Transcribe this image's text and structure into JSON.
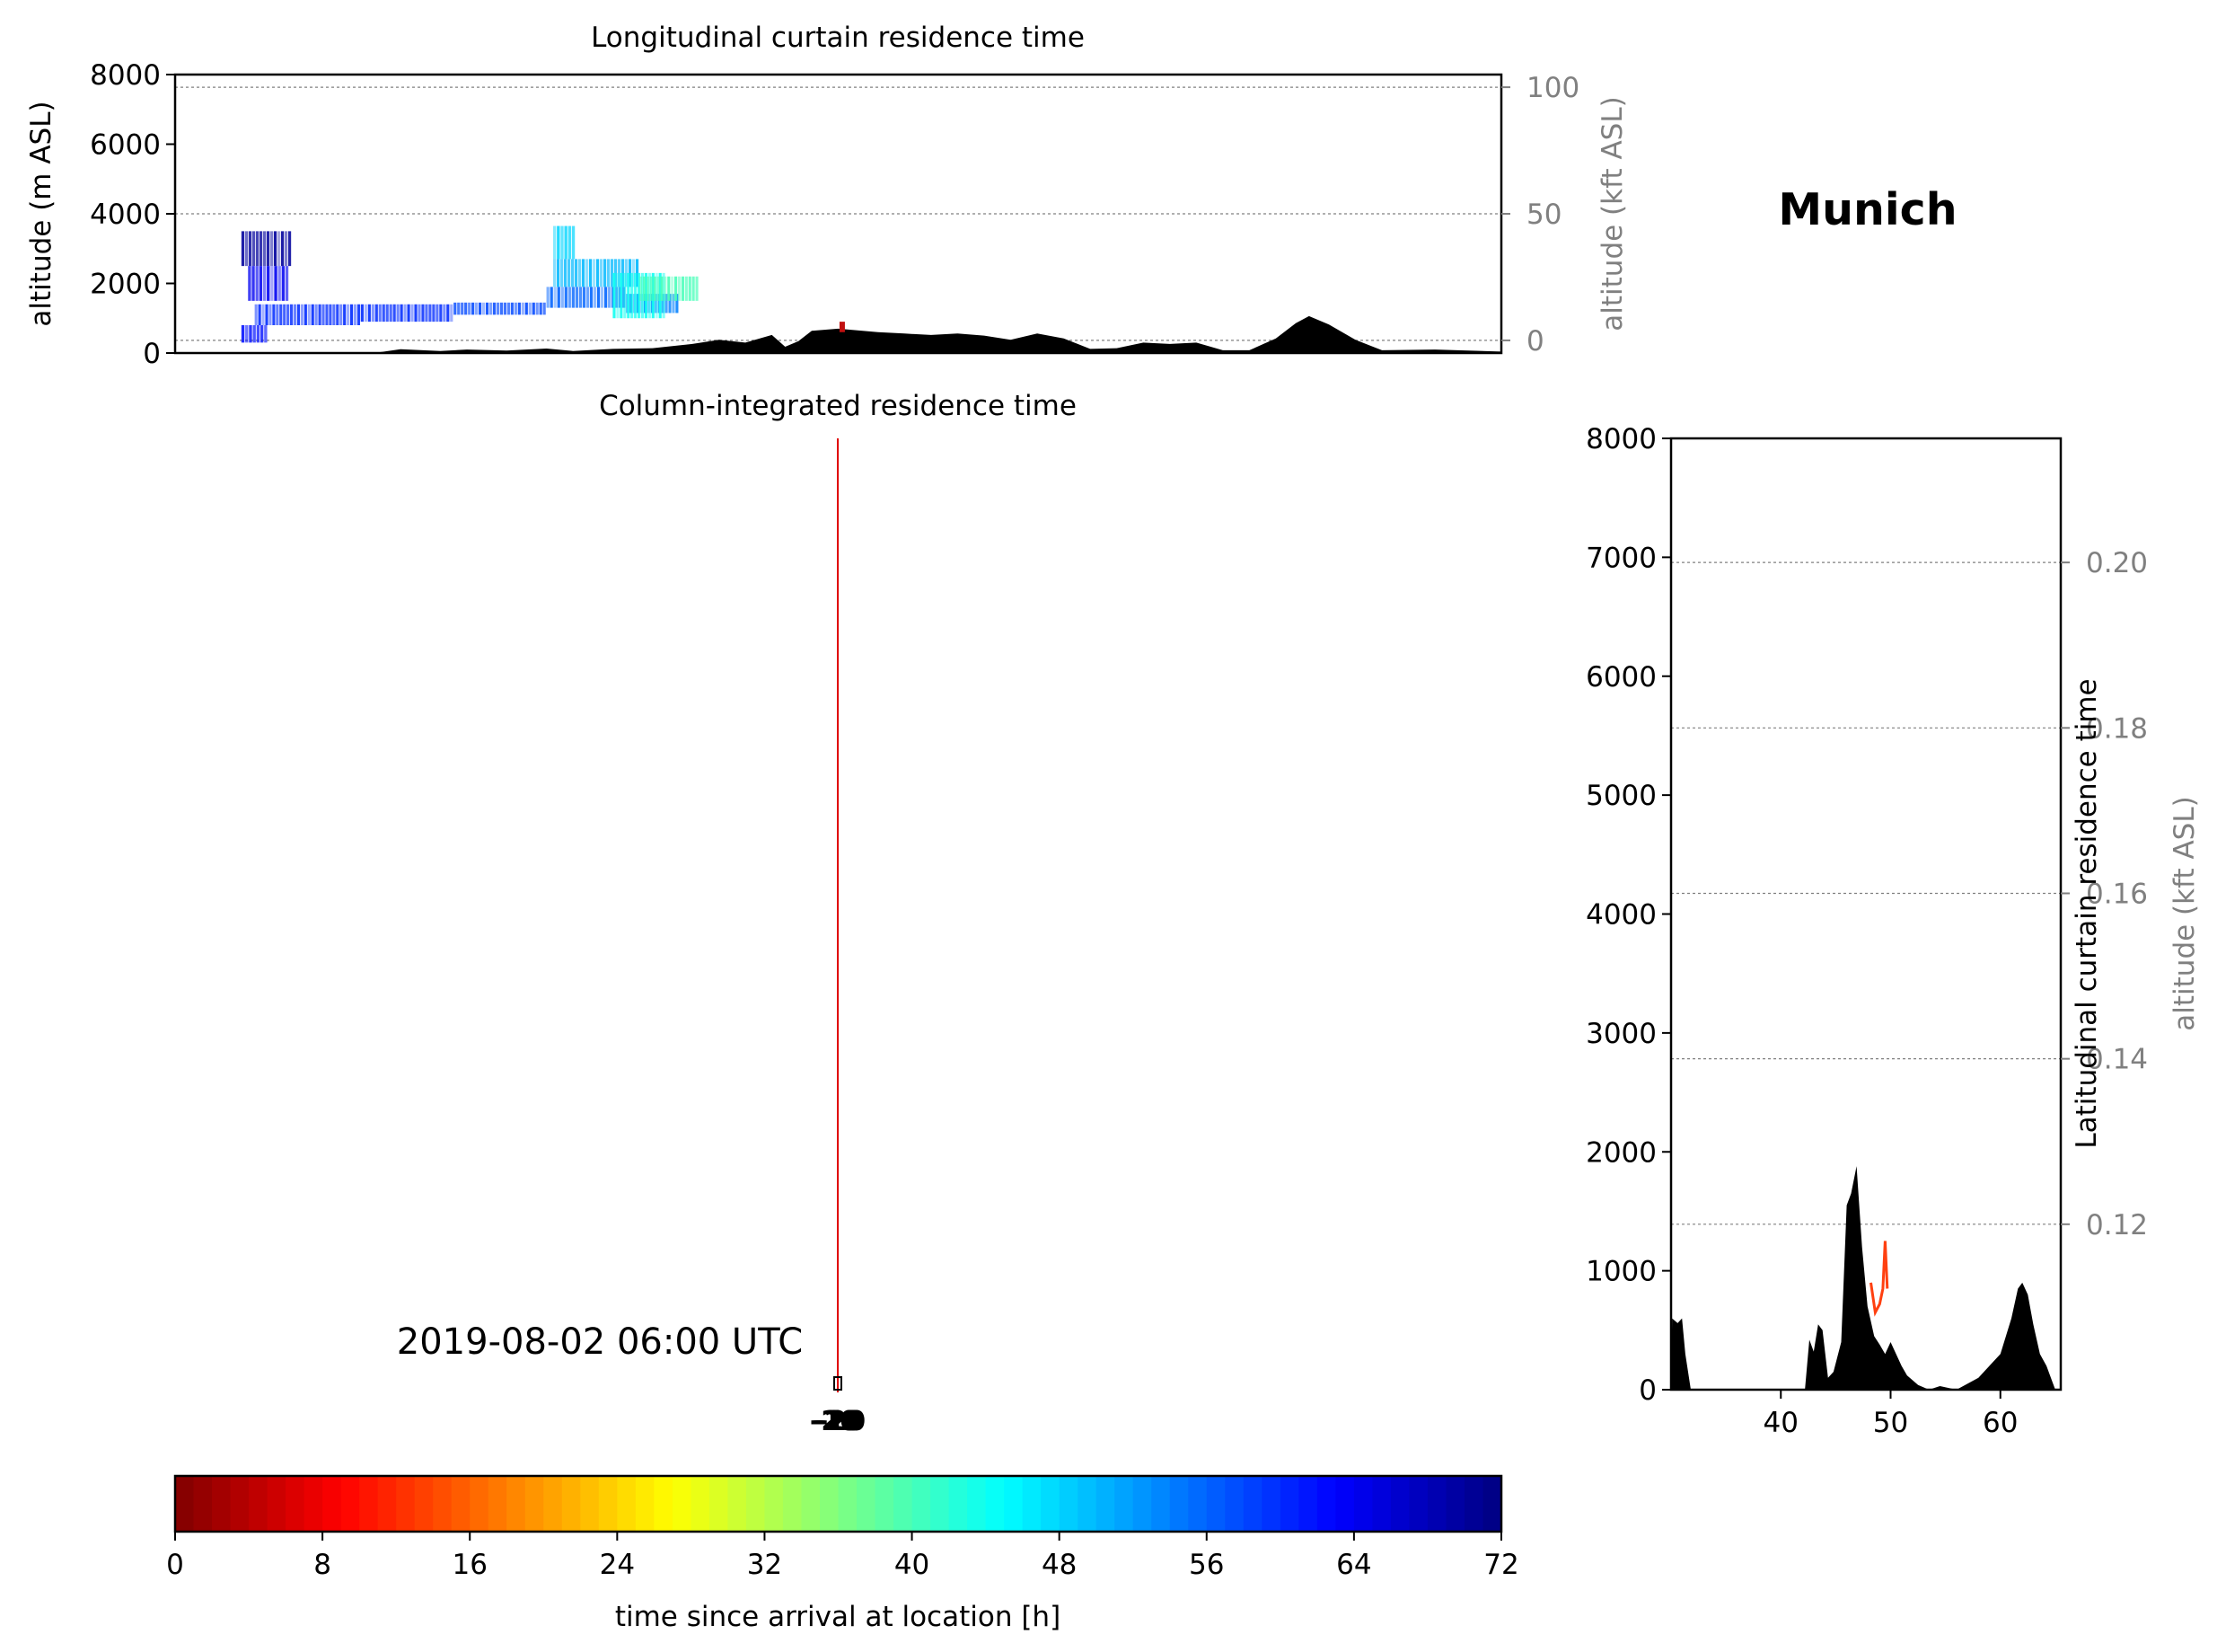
{
  "location_name": "Munich",
  "timestamp": "2019-08-02 06:00 UTC",
  "colors": {
    "terrain": "#000000",
    "release_line": "#e00000",
    "grid": "#808080",
    "secondary_axis": "#808080"
  },
  "chart_data": [
    {
      "id": "longitudinal",
      "type": "heatmap",
      "title": "Longitudinal curtain residence time",
      "ylabel": "altitude (m ASL)",
      "ylabel_right": "altitude (kft ASL)",
      "ylim": [
        0,
        8000
      ],
      "ylim_right": [
        -5,
        105
      ],
      "yticks": [
        0,
        2000,
        4000,
        6000,
        8000
      ],
      "yticks_right": [
        0,
        50,
        100
      ],
      "grid": true,
      "xlim": [
        0,
        100
      ],
      "terrain": [
        [
          0,
          0
        ],
        [
          15,
          0
        ],
        [
          17,
          110
        ],
        [
          20,
          60
        ],
        [
          22,
          100
        ],
        [
          25,
          70
        ],
        [
          28,
          130
        ],
        [
          30,
          60
        ],
        [
          33,
          120
        ],
        [
          36,
          140
        ],
        [
          39,
          260
        ],
        [
          41,
          380
        ],
        [
          43,
          300
        ],
        [
          45,
          520
        ],
        [
          46,
          180
        ],
        [
          47,
          340
        ],
        [
          48,
          640
        ],
        [
          50,
          700
        ],
        [
          53,
          600
        ],
        [
          55,
          560
        ],
        [
          57,
          520
        ],
        [
          59,
          560
        ],
        [
          61,
          500
        ],
        [
          63,
          380
        ],
        [
          65,
          560
        ],
        [
          67,
          420
        ],
        [
          69,
          120
        ],
        [
          71,
          140
        ],
        [
          73,
          300
        ],
        [
          75,
          260
        ],
        [
          77,
          300
        ],
        [
          79,
          80
        ],
        [
          81,
          80
        ],
        [
          83,
          420
        ],
        [
          84.5,
          860
        ],
        [
          85.5,
          1060
        ],
        [
          87,
          820
        ],
        [
          89,
          380
        ],
        [
          91,
          80
        ],
        [
          95,
          100
        ],
        [
          100,
          40
        ]
      ],
      "residence_blobs": [
        {
          "x0": 5,
          "x1": 8.8,
          "y0": 2500,
          "y1": 3500,
          "hours": 70
        },
        {
          "x0": 5.5,
          "x1": 8.6,
          "y0": 1500,
          "y1": 2500,
          "hours": 64
        },
        {
          "x0": 5,
          "x1": 7,
          "y0": 300,
          "y1": 800,
          "hours": 62
        },
        {
          "x0": 6,
          "x1": 14,
          "y0": 800,
          "y1": 1400,
          "hours": 60
        },
        {
          "x0": 14,
          "x1": 21,
          "y0": 900,
          "y1": 1400,
          "hours": 60
        },
        {
          "x0": 21,
          "x1": 28,
          "y0": 1100,
          "y1": 1450,
          "hours": 58
        },
        {
          "x0": 28,
          "x1": 34,
          "y0": 1300,
          "y1": 1900,
          "hours": 56
        },
        {
          "x0": 34,
          "x1": 38,
          "y0": 1150,
          "y1": 1700,
          "hours": 54
        },
        {
          "x0": 28.5,
          "x1": 30.2,
          "y0": 2700,
          "y1": 3650,
          "hours": 48
        },
        {
          "x0": 28.5,
          "x1": 35,
          "y0": 1900,
          "y1": 2700,
          "hours": 50
        },
        {
          "x0": 33,
          "x1": 37,
          "y0": 1000,
          "y1": 2300,
          "hours": 44
        },
        {
          "x0": 35,
          "x1": 39.5,
          "y0": 1500,
          "y1": 2200,
          "hours": 40
        }
      ],
      "release_marker": {
        "x": 50.3,
        "y0": 600,
        "y1": 900
      }
    },
    {
      "id": "column",
      "type": "heatmap",
      "title": "Column-integrated residence time",
      "release_x": 50.3,
      "contour_labels": [
        "-20",
        "-19",
        "-20",
        "-19",
        "-20"
      ]
    },
    {
      "id": "latitudinal",
      "type": "area",
      "ylabel": "Latitudinal curtain residence time",
      "ylabel_right": "altitude (kft ASL)",
      "ylim": [
        0,
        8000
      ],
      "ylim_right": [
        0.1,
        0.215
      ],
      "yticks": [
        0,
        1000,
        2000,
        3000,
        4000,
        5000,
        6000,
        7000,
        8000
      ],
      "yticks_right": [
        "0.12",
        "0.14",
        "0.16",
        "0.18",
        "0.20"
      ],
      "yticks_right_values": [
        0.12,
        0.14,
        0.16,
        0.18,
        0.2
      ],
      "xlim": [
        30,
        65.5
      ],
      "xticks": [
        40,
        50,
        60
      ],
      "grid": true,
      "terrain": [
        [
          30,
          0
        ],
        [
          30.1,
          600
        ],
        [
          30.6,
          560
        ],
        [
          31,
          600
        ],
        [
          31.3,
          300
        ],
        [
          31.8,
          0
        ],
        [
          42.2,
          0
        ],
        [
          42.6,
          420
        ],
        [
          43,
          320
        ],
        [
          43.4,
          550
        ],
        [
          43.8,
          500
        ],
        [
          44.3,
          100
        ],
        [
          44.8,
          150
        ],
        [
          45.5,
          400
        ],
        [
          46,
          1550
        ],
        [
          46.4,
          1650
        ],
        [
          46.9,
          1880
        ],
        [
          47.4,
          1200
        ],
        [
          47.9,
          700
        ],
        [
          48.5,
          450
        ],
        [
          49,
          380
        ],
        [
          49.5,
          300
        ],
        [
          50,
          400
        ],
        [
          50.5,
          300
        ],
        [
          51,
          200
        ],
        [
          51.5,
          120
        ],
        [
          52.5,
          40
        ],
        [
          53.5,
          0
        ],
        [
          54.5,
          30
        ],
        [
          56,
          0
        ],
        [
          58,
          100
        ],
        [
          59,
          200
        ],
        [
          60,
          300
        ],
        [
          61,
          600
        ],
        [
          61.6,
          850
        ],
        [
          62,
          900
        ],
        [
          62.5,
          800
        ],
        [
          63,
          550
        ],
        [
          63.6,
          300
        ],
        [
          64.2,
          200
        ],
        [
          65,
          0
        ],
        [
          65.5,
          0
        ]
      ],
      "release_series": [
        [
          48.2,
          900
        ],
        [
          48.6,
          650
        ],
        [
          49.0,
          720
        ],
        [
          49.3,
          850
        ],
        [
          49.5,
          1250
        ],
        [
          49.7,
          850
        ]
      ]
    },
    {
      "id": "colorbar",
      "type": "heatmap",
      "xlabel": "time since arrival at location [h]",
      "vmin": 0,
      "vmax": 72,
      "ticks": [
        0,
        8,
        16,
        24,
        32,
        40,
        48,
        56,
        64,
        72
      ],
      "levels": 72,
      "colormap": "jet"
    }
  ]
}
